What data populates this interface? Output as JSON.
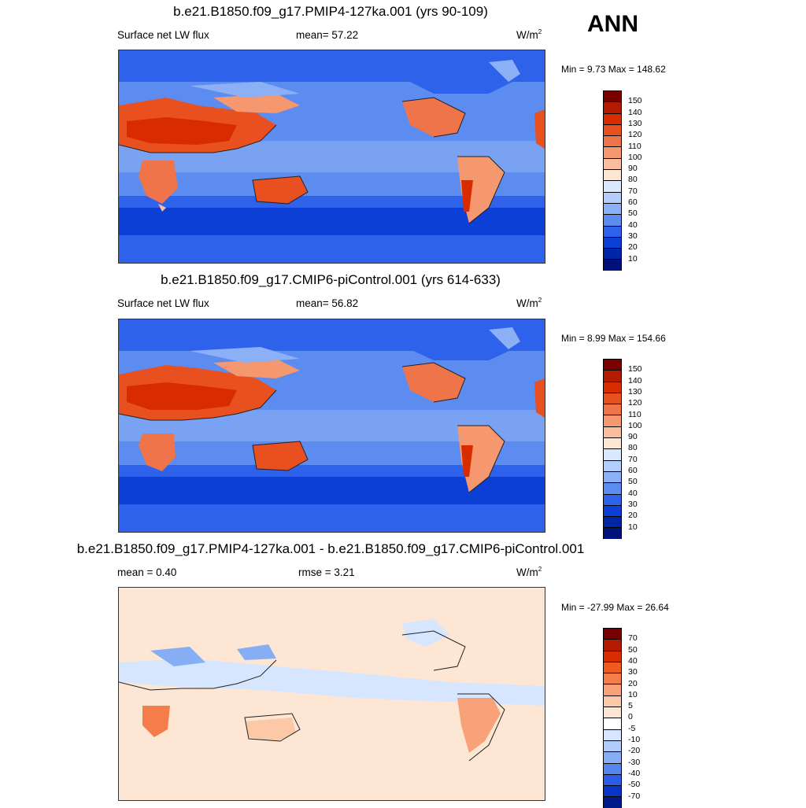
{
  "season": "ANN",
  "panels": [
    {
      "title": "b.e21.B1850.f09_g17.PMIP4-127ka.001 (yrs 90-109)",
      "left_label": "Surface net LW flux",
      "mid_label": "mean=  57.22",
      "units": "W/m",
      "units_sup": "2",
      "minmax": "Min =   9.73 Max = 148.62",
      "levels": [
        "150",
        "140",
        "130",
        "120",
        "110",
        "100",
        "90",
        "80",
        "70",
        "60",
        "50",
        "40",
        "30",
        "20",
        "10"
      ],
      "colors": [
        "#7a0000",
        "#b31a00",
        "#d92b00",
        "#e8501f",
        "#f07449",
        "#f5976f",
        "#f9bea0",
        "#fde6d3",
        "#dbe9ff",
        "#b3cdfc",
        "#8cb0f5",
        "#5c8cf0",
        "#2e62ea",
        "#0c3fd6",
        "#0026a8",
        "#00127a"
      ]
    },
    {
      "title": "b.e21.B1850.f09_g17.CMIP6-piControl.001 (yrs 614-633)",
      "left_label": "Surface net LW flux",
      "mid_label": "mean=  56.82",
      "units": "W/m",
      "units_sup": "2",
      "minmax": "Min =   8.99 Max = 154.66",
      "levels": [
        "150",
        "140",
        "130",
        "120",
        "110",
        "100",
        "90",
        "80",
        "70",
        "60",
        "50",
        "40",
        "30",
        "20",
        "10"
      ],
      "colors": [
        "#7a0000",
        "#b31a00",
        "#d92b00",
        "#e8501f",
        "#f07449",
        "#f5976f",
        "#f9bea0",
        "#fde6d3",
        "#dbe9ff",
        "#b3cdfc",
        "#8cb0f5",
        "#5c8cf0",
        "#2e62ea",
        "#0c3fd6",
        "#0026a8",
        "#00127a"
      ]
    },
    {
      "title": "b.e21.B1850.f09_g17.PMIP4-127ka.001 - b.e21.B1850.f09_g17.CMIP6-piControl.001",
      "left_label": "mean =   0.40",
      "mid_label": "rmse =    3.21",
      "units": "W/m",
      "units_sup": "2",
      "minmax": "Min = -27.99 Max =  26.64",
      "levels": [
        "70",
        "50",
        "40",
        "30",
        "20",
        "10",
        "5",
        "0",
        "-5",
        "-10",
        "-20",
        "-30",
        "-40",
        "-50",
        "-70"
      ],
      "colors": [
        "#7a0000",
        "#b31a00",
        "#d92b00",
        "#ef5a1f",
        "#f57d4a",
        "#f9a27a",
        "#fcc8a8",
        "#fde6d3",
        "#ffffff",
        "#d6e6ff",
        "#b0ccfb",
        "#86aef4",
        "#5486ee",
        "#2a5ee6",
        "#0a33c8",
        "#001a8a"
      ]
    }
  ]
}
